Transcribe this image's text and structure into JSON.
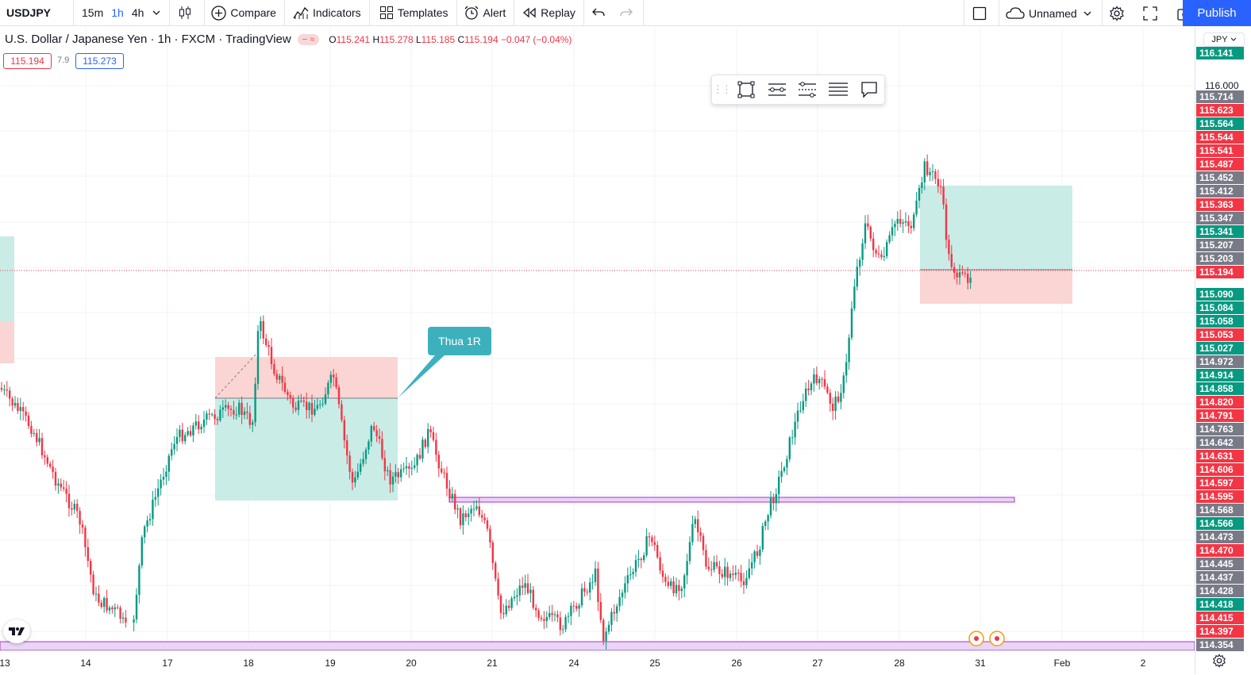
{
  "toolbar": {
    "symbol": "USDJPY",
    "intervals": [
      "15m",
      "1h",
      "4h"
    ],
    "active_interval": "1h",
    "compare": "Compare",
    "indicators": "Indicators",
    "templates": "Templates",
    "alert": "Alert",
    "replay": "Replay",
    "layout_name": "Unnamed",
    "publish": "Publish"
  },
  "legend": {
    "title": "U.S. Dollar / Japanese Yen · 1h · FXCM · TradingView",
    "o_label": "O",
    "o": "115.241",
    "h_label": "H",
    "h": "115.278",
    "l_label": "L",
    "l": "115.185",
    "c_label": "C",
    "c": "115.194",
    "change": "−0.047 (−0.04%)",
    "sell_price": "115.194",
    "spread": "7.9",
    "buy_price": "115.273"
  },
  "callout": {
    "text": "Thua 1R"
  },
  "axis": {
    "currency": "JPY",
    "y_tick": "116.000",
    "x_ticks": [
      "13",
      "14",
      "17",
      "18",
      "19",
      "20",
      "21",
      "24",
      "25",
      "26",
      "27",
      "28",
      "31",
      "Feb",
      "2"
    ]
  },
  "price_labels": [
    {
      "v": "116.141",
      "c": "#089981"
    },
    {
      "v": "115.714",
      "c": "#787b86"
    },
    {
      "v": "115.623",
      "c": "#f23645"
    },
    {
      "v": "115.564",
      "c": "#089981"
    },
    {
      "v": "115.544",
      "c": "#f23645"
    },
    {
      "v": "115.541",
      "c": "#f23645"
    },
    {
      "v": "115.487",
      "c": "#f23645"
    },
    {
      "v": "115.452",
      "c": "#787b86"
    },
    {
      "v": "115.412",
      "c": "#787b86"
    },
    {
      "v": "115.363",
      "c": "#f23645"
    },
    {
      "v": "115.347",
      "c": "#787b86"
    },
    {
      "v": "115.341",
      "c": "#089981"
    },
    {
      "v": "115.207",
      "c": "#787b86"
    },
    {
      "v": "115.203",
      "c": "#787b86"
    },
    {
      "v": "115.194",
      "c": "#f23645"
    },
    {
      "v": "115.090",
      "c": "#089981"
    },
    {
      "v": "115.084",
      "c": "#089981"
    },
    {
      "v": "115.058",
      "c": "#089981"
    },
    {
      "v": "115.053",
      "c": "#f23645"
    },
    {
      "v": "115.027",
      "c": "#089981"
    },
    {
      "v": "114.972",
      "c": "#787b86"
    },
    {
      "v": "114.914",
      "c": "#089981"
    },
    {
      "v": "114.858",
      "c": "#089981"
    },
    {
      "v": "114.820",
      "c": "#f23645"
    },
    {
      "v": "114.791",
      "c": "#f23645"
    },
    {
      "v": "114.763",
      "c": "#787b86"
    },
    {
      "v": "114.642",
      "c": "#787b86"
    },
    {
      "v": "114.631",
      "c": "#f23645"
    },
    {
      "v": "114.606",
      "c": "#f23645"
    },
    {
      "v": "114.597",
      "c": "#f23645"
    },
    {
      "v": "114.595",
      "c": "#f23645"
    },
    {
      "v": "114.568",
      "c": "#787b86"
    },
    {
      "v": "114.566",
      "c": "#089981"
    },
    {
      "v": "114.473",
      "c": "#787b86"
    },
    {
      "v": "114.470",
      "c": "#f23645"
    },
    {
      "v": "114.445",
      "c": "#787b86"
    },
    {
      "v": "114.437",
      "c": "#787b86"
    },
    {
      "v": "114.428",
      "c": "#787b86"
    },
    {
      "v": "114.418",
      "c": "#089981"
    },
    {
      "v": "114.415",
      "c": "#f23645"
    },
    {
      "v": "114.397",
      "c": "#f23645"
    },
    {
      "v": "114.354",
      "c": "#787b86"
    }
  ],
  "colors": {
    "up": "#089981",
    "down": "#f23645",
    "accent": "#2962ff"
  }
}
